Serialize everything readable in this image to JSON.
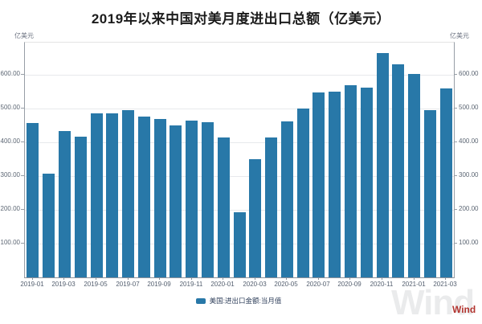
{
  "title": "2019年以来中国对美月度进出口总额（亿美元）",
  "axis": {
    "unit_left": "亿美元",
    "unit_right": "亿美元"
  },
  "legend": {
    "label": "美国:进出口金额:当月值"
  },
  "watermark": {
    "large": "Wind",
    "small": "Wind"
  },
  "colors": {
    "bar": "#2878a8",
    "grid": "#e7e9ec",
    "axis_line": "#979ea6",
    "tick_text": "#5d6774",
    "legend_text": "#31415c",
    "title_text": "#1c1c1c",
    "watermark_red": "#b23530"
  },
  "chart_data": {
    "type": "bar",
    "title": "2019年以来中国对美月度进出口总额（亿美元）",
    "xlabel": "",
    "ylabel": "亿美元",
    "ylim": [
      0,
      695
    ],
    "yticks": [
      100,
      200,
      300,
      400,
      500,
      600
    ],
    "ytick_format": "0.00",
    "grid": true,
    "legend_position": "bottom",
    "x_label_every": 2,
    "categories": [
      "2019-01",
      "2019-02",
      "2019-03",
      "2019-04",
      "2019-05",
      "2019-06",
      "2019-07",
      "2019-08",
      "2019-09",
      "2019-10",
      "2019-11",
      "2019-12",
      "2020-01",
      "2020-02",
      "2020-03",
      "2020-04",
      "2020-05",
      "2020-06",
      "2020-07",
      "2020-08",
      "2020-09",
      "2020-10",
      "2020-11",
      "2020-12",
      "2021-01",
      "2021-02",
      "2021-03"
    ],
    "values": [
      458,
      308,
      432,
      416,
      485,
      486,
      495,
      477,
      470,
      449,
      465,
      459,
      413,
      192,
      351,
      414,
      462,
      499,
      547,
      549,
      569,
      562,
      664,
      630,
      603,
      496,
      559
    ]
  }
}
